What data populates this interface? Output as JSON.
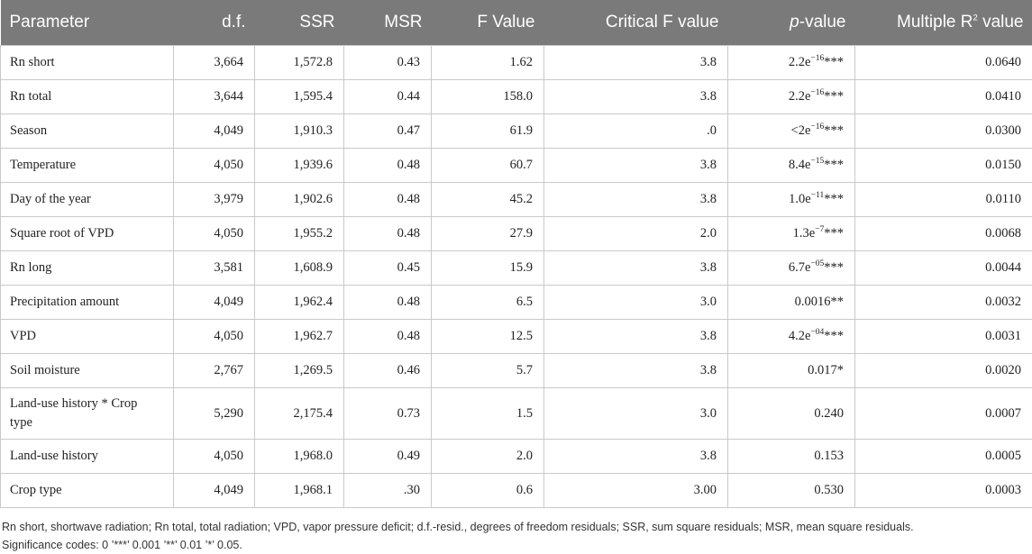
{
  "table": {
    "headers": {
      "parameter": "Parameter",
      "df": "d.f.",
      "ssr": "SSR",
      "msr": "MSR",
      "f_value": "F Value",
      "critical_f": "Critical F value",
      "p_prefix": "p",
      "p_suffix": "-value",
      "r2_prefix": "Multiple R",
      "r2_sup": "2",
      "r2_suffix": " value"
    },
    "rows": [
      {
        "parameter": "Rn short",
        "df": "3,664",
        "ssr": "1,572.8",
        "msr": "0.43",
        "f": "1.62",
        "critical": "3.8",
        "p_base": "2.2e",
        "p_exp": "−16",
        "p_tail": "***",
        "r2": "0.0640"
      },
      {
        "parameter": "Rn total",
        "df": "3,644",
        "ssr": "1,595.4",
        "msr": "0.44",
        "f": "158.0",
        "critical": "3.8",
        "p_base": "2.2e",
        "p_exp": "−16",
        "p_tail": "***",
        "r2": "0.0410"
      },
      {
        "parameter": "Season",
        "df": "4,049",
        "ssr": "1,910.3",
        "msr": "0.47",
        "f": "61.9",
        "critical": ".0",
        "p_base": "<2e",
        "p_exp": "−16",
        "p_tail": "***",
        "r2": "0.0300"
      },
      {
        "parameter": "Temperature",
        "df": "4,050",
        "ssr": "1,939.6",
        "msr": "0.48",
        "f": "60.7",
        "critical": "3.8",
        "p_base": "8.4e",
        "p_exp": "−15",
        "p_tail": "***",
        "r2": "0.0150"
      },
      {
        "parameter": "Day of the year",
        "df": "3,979",
        "ssr": "1,902.6",
        "msr": "0.48",
        "f": "45.2",
        "critical": "3.8",
        "p_base": "1.0e",
        "p_exp": "−11",
        "p_tail": "***",
        "r2": "0.0110"
      },
      {
        "parameter": "Square root of VPD",
        "df": "4,050",
        "ssr": "1,955.2",
        "msr": "0.48",
        "f": "27.9",
        "critical": "2.0",
        "p_base": "1.3e",
        "p_exp": "−7",
        "p_tail": "***",
        "r2": "0.0068"
      },
      {
        "parameter": "Rn long",
        "df": "3,581",
        "ssr": "1,608.9",
        "msr": "0.45",
        "f": "15.9",
        "critical": "3.8",
        "p_base": "6.7e",
        "p_exp": "−05",
        "p_tail": "***",
        "r2": "0.0044"
      },
      {
        "parameter": "Precipitation amount",
        "df": "4,049",
        "ssr": "1,962.4",
        "msr": "0.48",
        "f": "6.5",
        "critical": "3.0",
        "p_base": "0.0016**",
        "p_exp": "",
        "p_tail": "",
        "r2": "0.0032"
      },
      {
        "parameter": "VPD",
        "df": "4,050",
        "ssr": "1,962.7",
        "msr": "0.48",
        "f": "12.5",
        "critical": "3.8",
        "p_base": "4.2e",
        "p_exp": "−04",
        "p_tail": "***",
        "r2": "0.0031"
      },
      {
        "parameter": "Soil moisture",
        "df": "2,767",
        "ssr": "1,269.5",
        "msr": "0.46",
        "f": "5.7",
        "critical": "3.8",
        "p_base": "0.017*",
        "p_exp": "",
        "p_tail": "",
        "r2": "0.0020"
      },
      {
        "parameter": "Land-use history * Crop type",
        "df": "5,290",
        "ssr": "2,175.4",
        "msr": "0.73",
        "f": "1.5",
        "critical": "3.0",
        "p_base": "0.240",
        "p_exp": "",
        "p_tail": "",
        "r2": "0.0007",
        "tall": true
      },
      {
        "parameter": "Land-use history",
        "df": "4,050",
        "ssr": "1,968.0",
        "msr": "0.49",
        "f": "2.0",
        "critical": "3.8",
        "p_base": "0.153",
        "p_exp": "",
        "p_tail": "",
        "r2": "0.0005"
      },
      {
        "parameter": "Crop type",
        "df": "4,049",
        "ssr": "1,968.1",
        "msr": ".30",
        "f": "0.6",
        "critical": "3.00",
        "p_base": "0.530",
        "p_exp": "",
        "p_tail": "",
        "r2": "0.0003"
      }
    ]
  },
  "footnote": {
    "line1": "Rn short, shortwave radiation; Rn total, total radiation; VPD, vapor pressure deficit; d.f.-resid., degrees of freedom residuals; SSR, sum square residuals; MSR, mean square residuals.",
    "line2": "Significance codes: 0 ’***’ 0.001 ’**’ 0.01 ’*’ 0.05."
  }
}
